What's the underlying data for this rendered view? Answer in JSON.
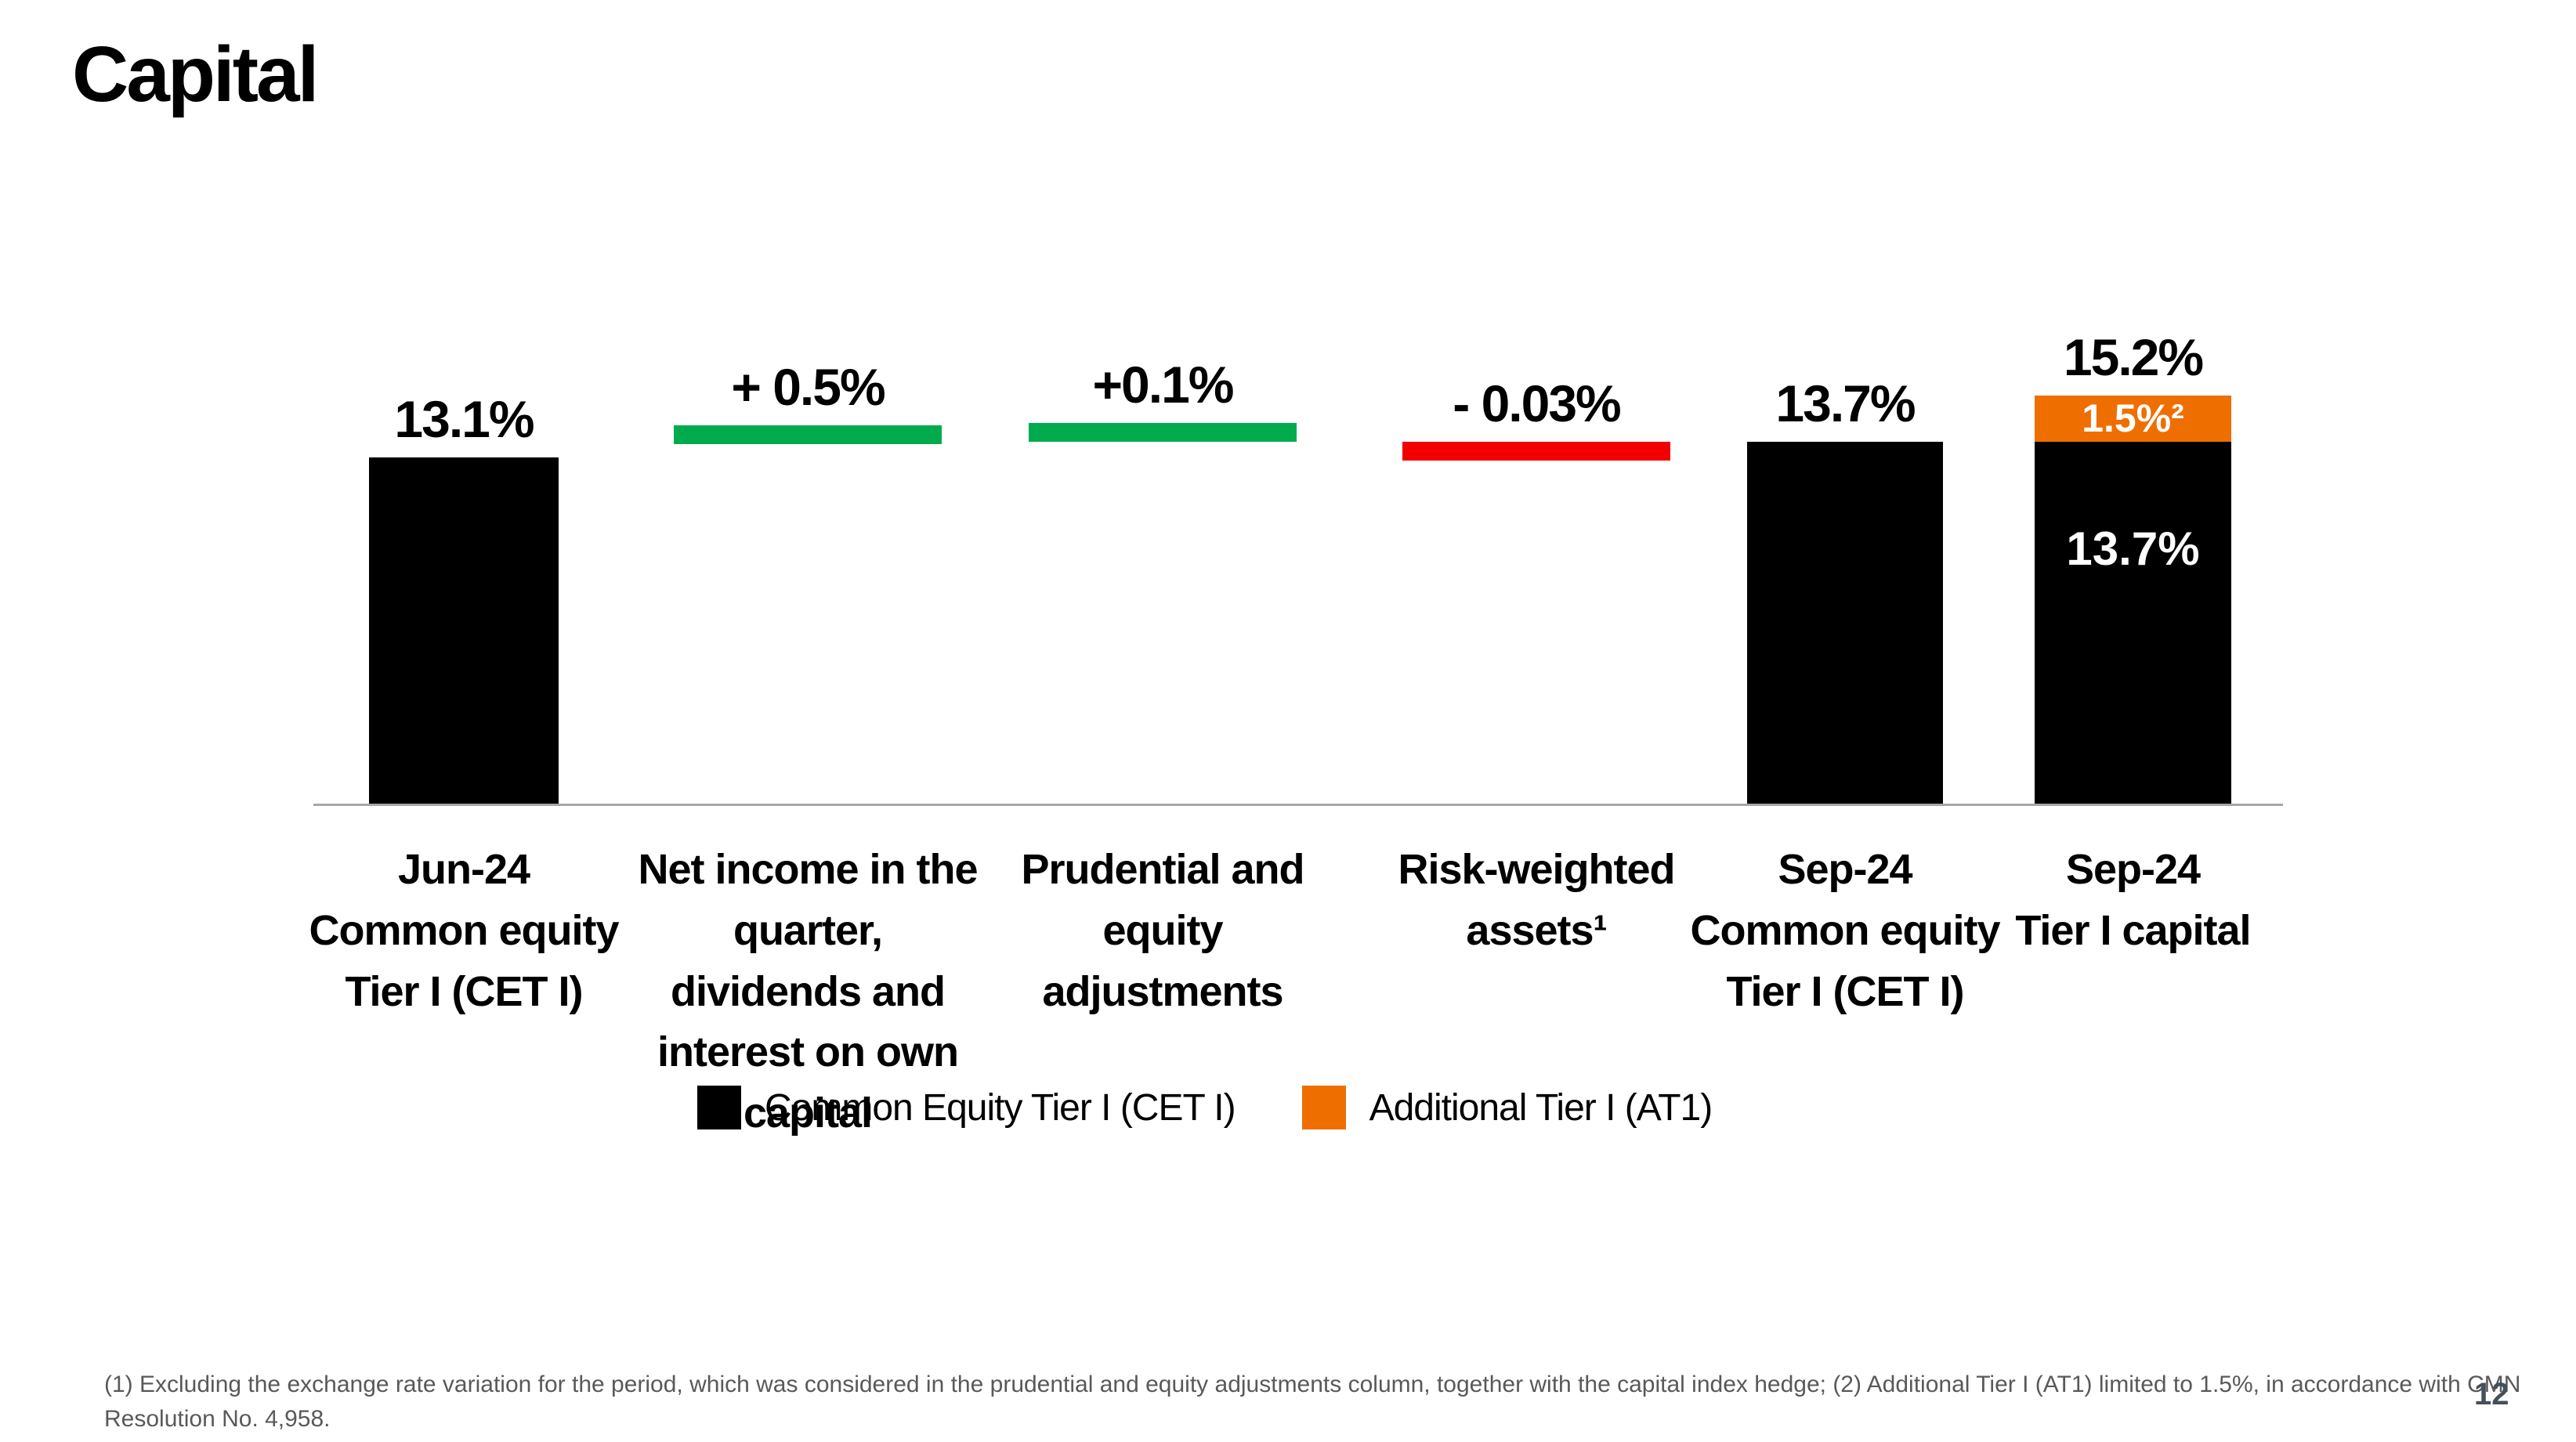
{
  "slide": {
    "title": "Capital",
    "page_number": "12",
    "footnote_lines": [
      "(1) Excluding the exchange rate variation for the period, which was considered in the prudential and equity adjustments column, together with the capital index hedge; (2) Additional Tier I (AT1) limited to 1.5%, in accordance with CMN",
      "Resolution No. 4,958."
    ]
  },
  "colors": {
    "cet1_black": "#000000",
    "increase_green": "#00AB4E",
    "decrease_red": "#F20000",
    "at1_orange": "#EE6F00",
    "axis_gray": "#A6A6A6",
    "footnote_gray": "#595959",
    "page_number_gray": "#44505A"
  },
  "chart_data": {
    "type": "bar",
    "subtype": "waterfall",
    "title": "Capital",
    "unit": "percent",
    "grid": false,
    "axis": {
      "baseline_only": true
    },
    "legend_position": "bottom-center",
    "categories": [
      "Jun-24 Common equity Tier I (CET I)",
      "Net income in the quarter, dividends and interest on own capital",
      "Prudential and equity adjustments",
      "Risk-weighted assets¹",
      "Sep-24 Common equity Tier I (CET I)",
      "Sep-24 Tier I capital"
    ],
    "columns": [
      {
        "kind": "bar",
        "series": "CET1",
        "value": 13.1,
        "value_label": "13.1%",
        "label_lines": [
          "Jun-24",
          "Common equity",
          "Tier I (CET I)"
        ]
      },
      {
        "kind": "delta",
        "direction": "increase",
        "value": 0.5,
        "value_label": "+ 0.5%",
        "start": 13.1,
        "end": 13.6,
        "label_lines": [
          "Net income in the",
          "quarter,",
          "dividends and",
          "interest on own",
          "capital"
        ]
      },
      {
        "kind": "delta",
        "direction": "increase",
        "value": 0.1,
        "value_label": "+0.1%",
        "start": 13.6,
        "end": 13.7,
        "label_lines": [
          "Prudential and",
          "equity",
          "adjustments"
        ]
      },
      {
        "kind": "delta",
        "direction": "decrease",
        "value": -0.03,
        "value_label": "- 0.03%",
        "start": 13.7,
        "end": 13.67,
        "label_lines": [
          "Risk-weighted",
          "assets¹"
        ]
      },
      {
        "kind": "bar",
        "series": "CET1",
        "value": 13.7,
        "value_label": "13.7%",
        "label_lines": [
          "Sep-24",
          "Common equity",
          "Tier I (CET I)"
        ]
      },
      {
        "kind": "stacked-bar",
        "total": 15.2,
        "total_label": "15.2%",
        "segments": [
          {
            "series": "CET1",
            "value": 13.7,
            "label": "13.7%"
          },
          {
            "series": "AT1",
            "value": 1.5,
            "label": "1.5%²"
          }
        ],
        "label_lines": [
          "Sep-24",
          "Tier I capital"
        ]
      }
    ],
    "legend": [
      {
        "series": "CET1",
        "label": "Common Equity Tier I (CET I)",
        "color": "#000000"
      },
      {
        "series": "AT1",
        "label": "Additional Tier I (AT1)",
        "color": "#EE6F00"
      }
    ]
  }
}
